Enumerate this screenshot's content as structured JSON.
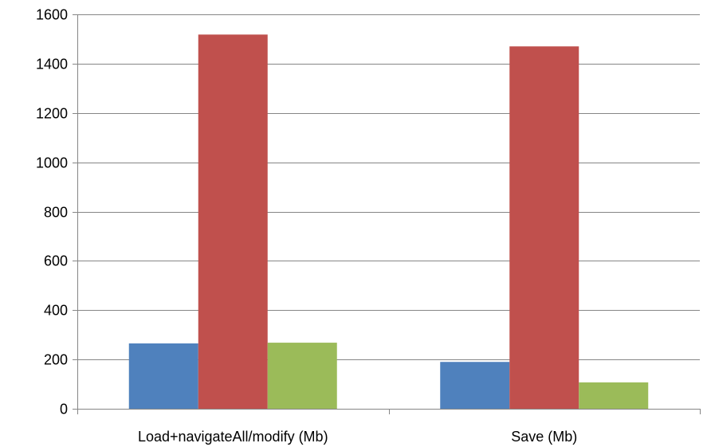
{
  "chart_data": {
    "type": "bar",
    "categories": [
      "Load+navigateAll/modify (Mb)",
      "Save (Mb)"
    ],
    "series": [
      {
        "values": [
          265,
          190
        ],
        "color": "#4f81bd"
      },
      {
        "values": [
          1518,
          1470
        ],
        "color": "#c0504d"
      },
      {
        "values": [
          268,
          107
        ],
        "color": "#9bbb59"
      }
    ],
    "ylim": [
      0,
      1600
    ],
    "yticks": [
      0,
      200,
      400,
      600,
      800,
      1000,
      1200,
      1400,
      1600
    ],
    "grid": true,
    "legend": "none"
  }
}
